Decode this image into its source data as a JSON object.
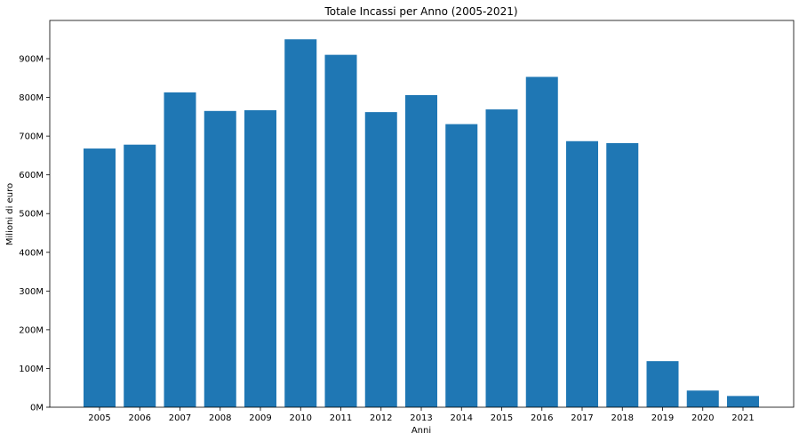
{
  "chart_data": {
    "type": "bar",
    "title": "Totale Incassi per Anno (2005-2021)",
    "xlabel": "Anni",
    "ylabel": "Milioni di euro",
    "categories": [
      "2005",
      "2006",
      "2007",
      "2008",
      "2009",
      "2010",
      "2011",
      "2012",
      "2013",
      "2014",
      "2015",
      "2016",
      "2017",
      "2018",
      "2019",
      "2020",
      "2021"
    ],
    "values": [
      668,
      678,
      813,
      765,
      767,
      950,
      910,
      762,
      806,
      731,
      769,
      853,
      687,
      682,
      119,
      43,
      29
    ],
    "value_unit": "M",
    "ylim": [
      0,
      1000
    ],
    "yticks": [
      0,
      100,
      200,
      300,
      400,
      500,
      600,
      700,
      800,
      900
    ],
    "ytick_labels": [
      "0M",
      "100M",
      "200M",
      "300M",
      "400M",
      "500M",
      "600M",
      "700M",
      "800M",
      "900M"
    ],
    "bar_color": "#1f77b4",
    "grid": false,
    "legend": "none"
  }
}
